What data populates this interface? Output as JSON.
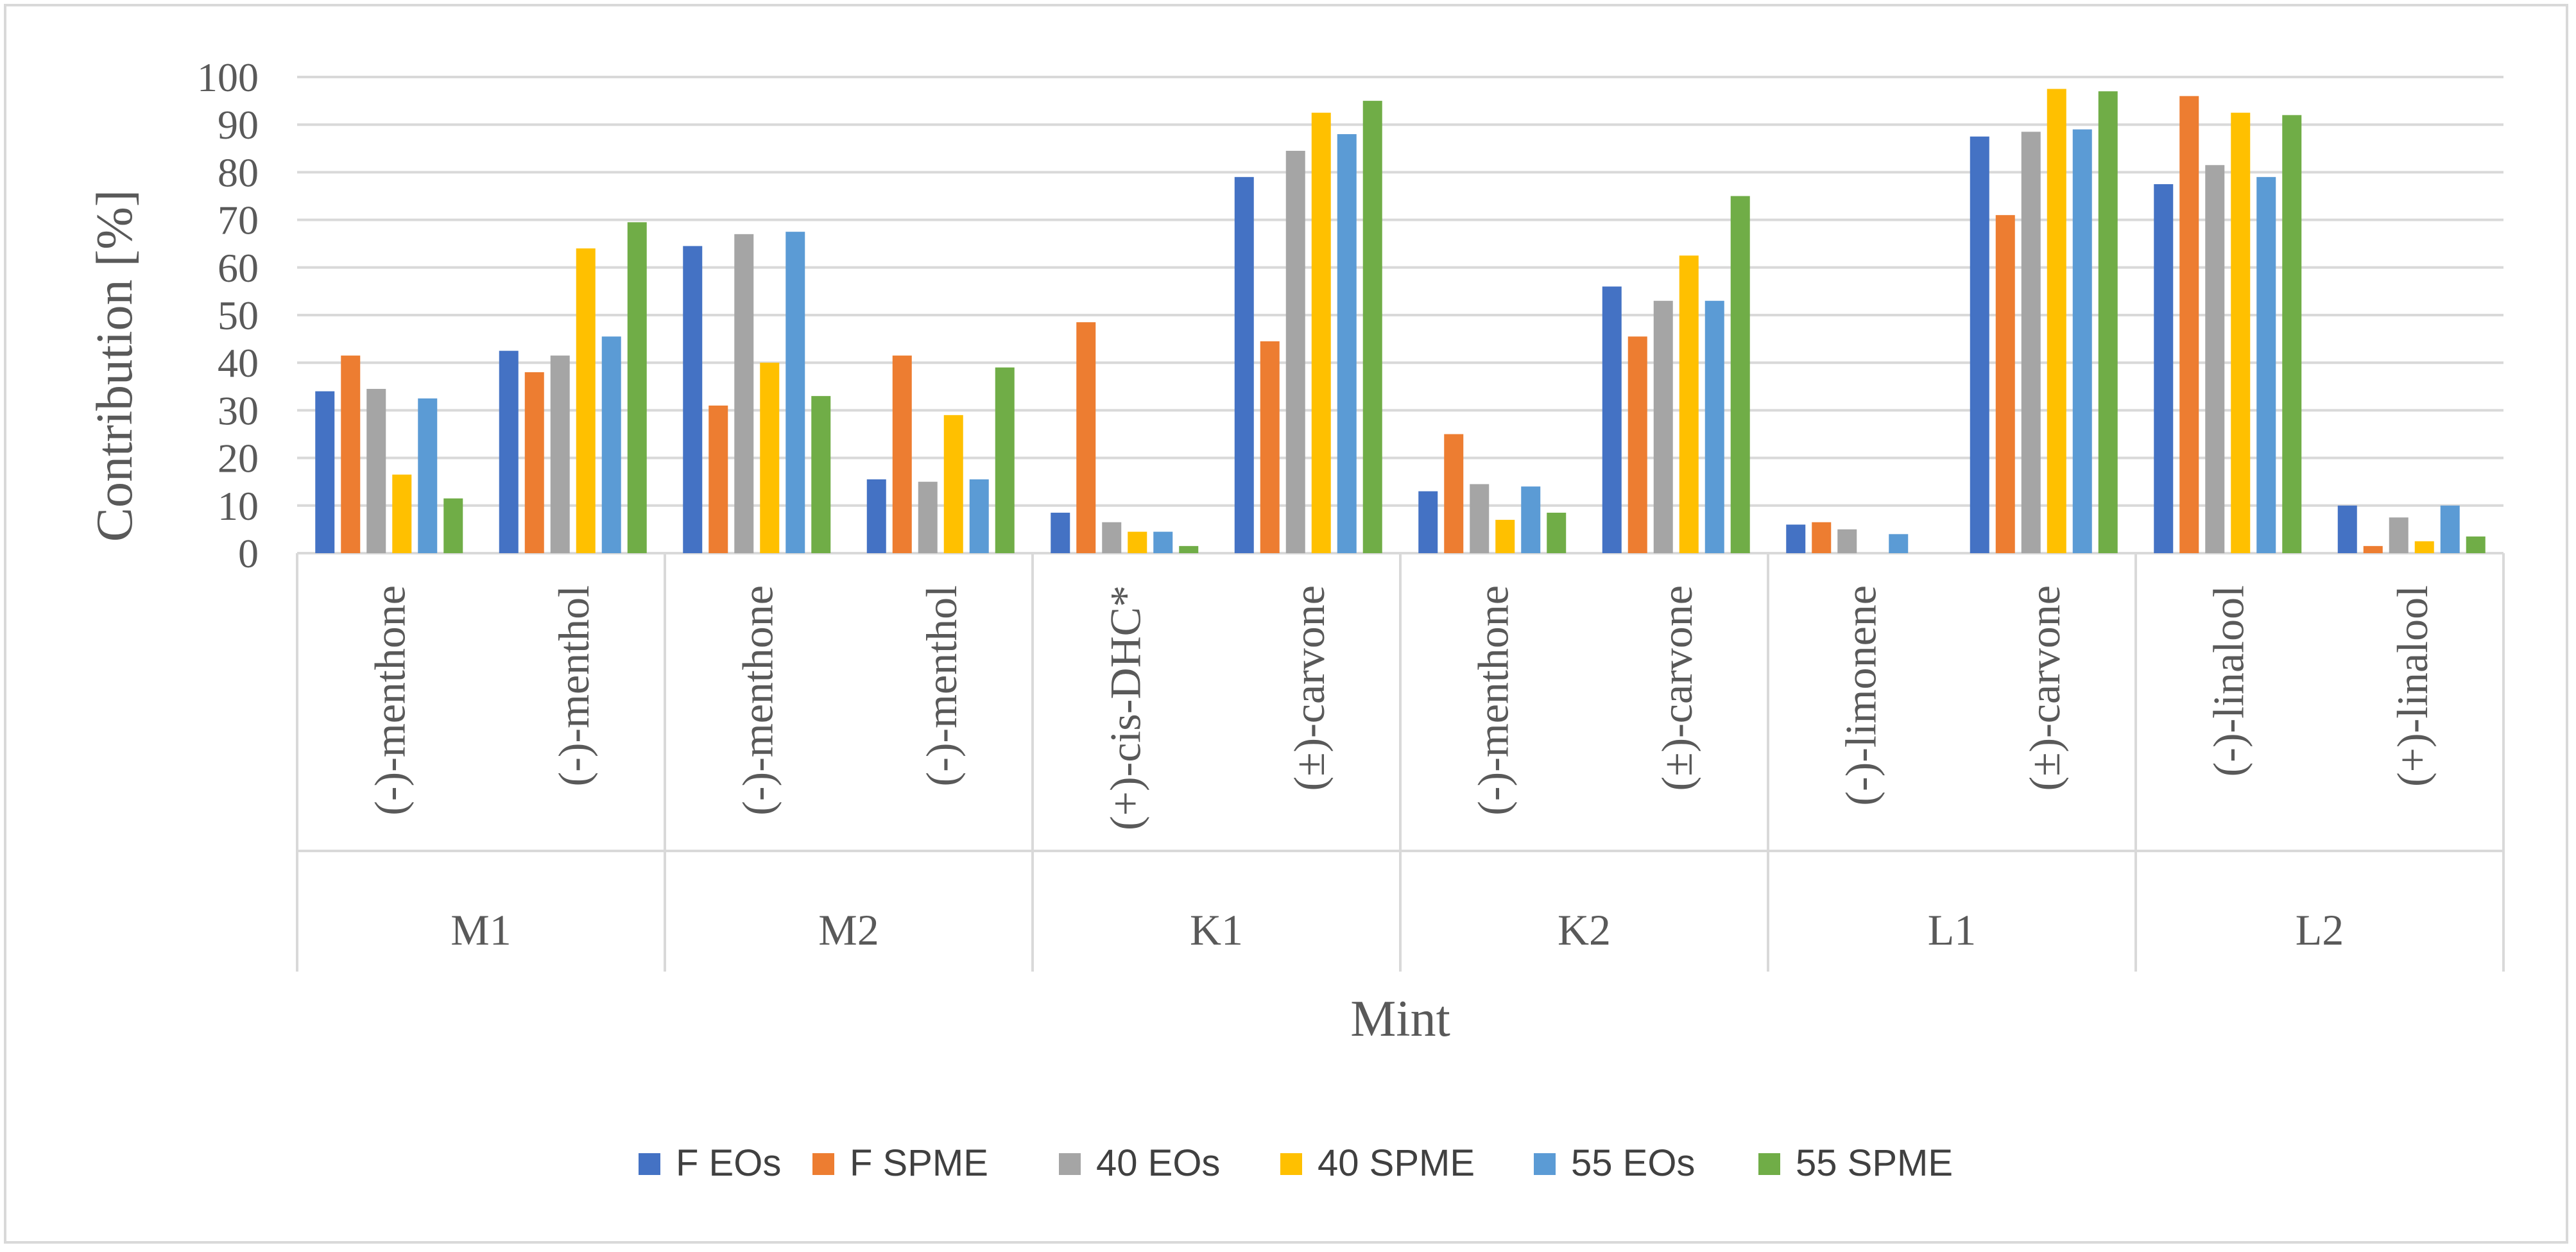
{
  "chart_data": {
    "type": "bar",
    "title": "",
    "xlabel": "Mint",
    "ylabel": "Contribution [%]",
    "ylim": [
      0,
      100
    ],
    "yticks": [
      0,
      10,
      20,
      30,
      40,
      50,
      60,
      70,
      80,
      90,
      100
    ],
    "grid": true,
    "legend_position": "bottom",
    "groups": [
      {
        "label": "M1",
        "categories": [
          "(-)-menthone",
          "(-)-menthol"
        ]
      },
      {
        "label": "M2",
        "categories": [
          "(-)-menthone",
          "(-)-menthol"
        ]
      },
      {
        "label": "K1",
        "categories": [
          "(+)-cis-DHC*",
          "(±)-carvone"
        ]
      },
      {
        "label": "K2",
        "categories": [
          "(-)-menthone",
          "(±)-carvone"
        ]
      },
      {
        "label": "L1",
        "categories": [
          "(-)-limonene",
          "(±)-carvone"
        ]
      },
      {
        "label": "L2",
        "categories": [
          "(-)-linalool",
          "(+)-linalool"
        ]
      }
    ],
    "series": [
      {
        "name": "F EOs",
        "color": "#4472C4",
        "values": [
          34,
          42.5,
          64.5,
          15.5,
          8.5,
          79,
          13,
          56,
          6,
          87.5,
          77.5,
          10
        ]
      },
      {
        "name": "F SPME",
        "color": "#ED7D31",
        "values": [
          41.5,
          38,
          31,
          41.5,
          48.5,
          44.5,
          25,
          45.5,
          6.5,
          71,
          96,
          1.5
        ]
      },
      {
        "name": "40 EOs",
        "color": "#A5A5A5",
        "values": [
          34.5,
          41.5,
          67,
          15,
          6.5,
          84.5,
          14.5,
          53,
          5,
          88.5,
          81.5,
          7.5
        ]
      },
      {
        "name": "40 SPME",
        "color": "#FFC000",
        "values": [
          16.5,
          64,
          40,
          29,
          4.5,
          92.5,
          7,
          62.5,
          0,
          97.5,
          92.5,
          2.5
        ]
      },
      {
        "name": "55 EOs",
        "color": "#5B9BD5",
        "values": [
          32.5,
          45.5,
          67.5,
          15.5,
          4.5,
          88,
          14,
          53,
          4,
          89,
          79,
          10
        ]
      },
      {
        "name": "55 SPME",
        "color": "#70AD47",
        "values": [
          11.5,
          69.5,
          33,
          39,
          1.5,
          95,
          8.5,
          75,
          0,
          97,
          92,
          3.5
        ]
      }
    ]
  },
  "colors": {
    "grid": "#d9d9d9",
    "axis_text": "#595959",
    "legend_text": "#404040"
  }
}
